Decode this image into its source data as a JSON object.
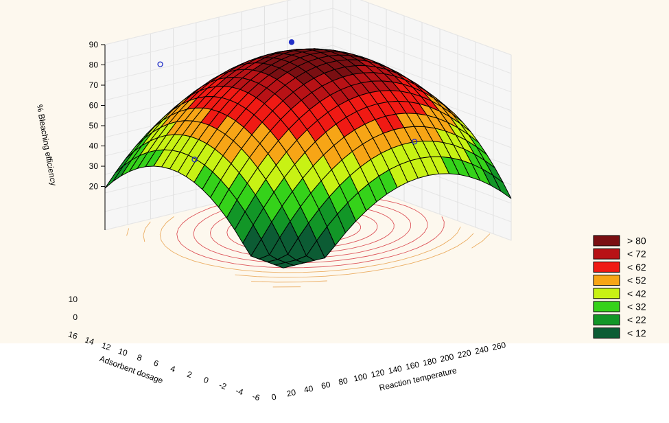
{
  "chart_data": {
    "type": "surface3d",
    "z_label": "% Bleaching efficiency",
    "x_label": "Reaction temperature",
    "y_label": "Adsorbent dosage",
    "z_ticks": [
      "90",
      "80",
      "70",
      "60",
      "50",
      "40",
      "30",
      "20"
    ],
    "x_ticks": [
      "0",
      "20",
      "40",
      "60",
      "80",
      "100",
      "120",
      "140",
      "160",
      "180",
      "200",
      "220",
      "240",
      "260"
    ],
    "y_ticks": [
      "16",
      "14",
      "12",
      "10",
      "8",
      "6",
      "4",
      "2",
      "0",
      "-2",
      "-4",
      "-6"
    ],
    "extra_ticks": [
      "10",
      "0"
    ],
    "zlim": [
      20,
      90
    ],
    "grid": true,
    "legend_placement": "right",
    "legend": [
      {
        "label": "> 80",
        "color": "#7a0f12"
      },
      {
        "label": "< 72",
        "color": "#b81216"
      },
      {
        "label": "< 62",
        "color": "#f01a14"
      },
      {
        "label": "< 52",
        "color": "#f7a516"
      },
      {
        "label": "< 42",
        "color": "#c8f214"
      },
      {
        "label": "< 32",
        "color": "#35d21a"
      },
      {
        "label": "< 22",
        "color": "#129627"
      },
      {
        "label": "< 12",
        "color": "#0c5c34"
      }
    ],
    "surface": {
      "peak": 85,
      "min": 12
    },
    "design_points": [
      {
        "label": "",
        "z": 78
      },
      {
        "label": "",
        "z": 84
      },
      {
        "label": "",
        "z": 44
      },
      {
        "label": "",
        "z": 40
      }
    ],
    "colors": {
      "background": "#fdf8ee",
      "mesh": "#000000",
      "contour": "#d7373f"
    }
  }
}
